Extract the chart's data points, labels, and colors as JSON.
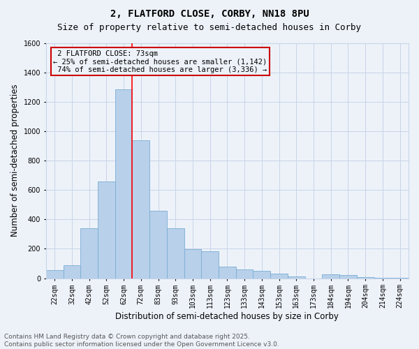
{
  "title": "2, FLATFORD CLOSE, CORBY, NN18 8PU",
  "subtitle": "Size of property relative to semi-detached houses in Corby",
  "xlabel": "Distribution of semi-detached houses by size in Corby",
  "ylabel": "Number of semi-detached properties",
  "categories": [
    "22sqm",
    "32sqm",
    "42sqm",
    "52sqm",
    "62sqm",
    "72sqm",
    "83sqm",
    "93sqm",
    "103sqm",
    "113sqm",
    "123sqm",
    "133sqm",
    "143sqm",
    "153sqm",
    "163sqm",
    "173sqm",
    "184sqm",
    "194sqm",
    "204sqm",
    "214sqm",
    "224sqm"
  ],
  "values": [
    55,
    90,
    340,
    660,
    1285,
    940,
    460,
    340,
    195,
    185,
    80,
    60,
    50,
    30,
    10,
    0,
    25,
    20,
    8,
    5,
    2
  ],
  "bar_color": "#b8d0ea",
  "bar_edge_color": "#7aadd4",
  "grid_color": "#c8d4e8",
  "background_color": "#edf2f9",
  "ylim": [
    0,
    1600
  ],
  "yticks": [
    0,
    200,
    400,
    600,
    800,
    1000,
    1200,
    1400,
    1600
  ],
  "property_label": "2 FLATFORD CLOSE: 73sqm",
  "pct_smaller": 25,
  "pct_larger": 74,
  "count_smaller": 1142,
  "count_larger": 3336,
  "vline_bin_index": 5,
  "annotation_box_color": "#cc0000",
  "footer": "Contains HM Land Registry data © Crown copyright and database right 2025.\nContains public sector information licensed under the Open Government Licence v3.0.",
  "title_fontsize": 10,
  "subtitle_fontsize": 9,
  "axis_label_fontsize": 8.5,
  "tick_fontsize": 7,
  "annotation_fontsize": 7.5,
  "footer_fontsize": 6.5
}
